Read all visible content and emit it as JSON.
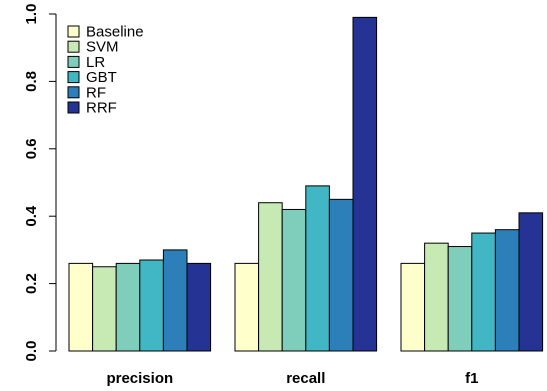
{
  "chart_data": {
    "type": "bar",
    "title": "",
    "xlabel": "",
    "ylabel": "",
    "categories": [
      "precision",
      "recall",
      "f1"
    ],
    "ylim": [
      0,
      1.0
    ],
    "yticks": [
      "0.0",
      "0.2",
      "0.4",
      "0.6",
      "0.8",
      "1.0"
    ],
    "grid": false,
    "legend_position": "top-left",
    "series": [
      {
        "name": "Baseline",
        "color": "#ffffcc",
        "values": [
          0.26,
          0.26,
          0.26
        ]
      },
      {
        "name": "SVM",
        "color": "#c7e9b4",
        "values": [
          0.25,
          0.44,
          0.32
        ]
      },
      {
        "name": "LR",
        "color": "#7fcdbb",
        "values": [
          0.26,
          0.42,
          0.31
        ]
      },
      {
        "name": "GBT",
        "color": "#41b6c4",
        "values": [
          0.27,
          0.49,
          0.35
        ]
      },
      {
        "name": "RF",
        "color": "#2c7fb8",
        "values": [
          0.3,
          0.45,
          0.36
        ]
      },
      {
        "name": "RRF",
        "color": "#253494",
        "values": [
          0.26,
          0.99,
          0.41
        ]
      }
    ]
  }
}
